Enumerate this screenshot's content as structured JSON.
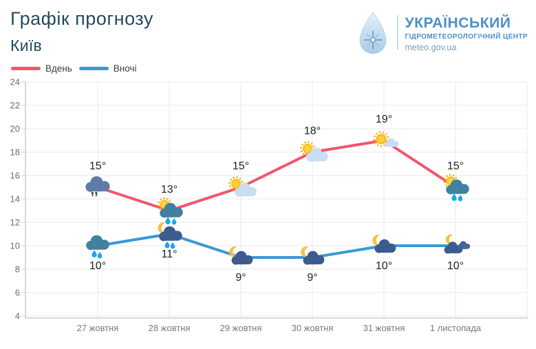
{
  "header": {
    "title": "Графік прогнозу",
    "city": "Київ",
    "title_color": "#234b5e"
  },
  "logo": {
    "icon": "water-drop-snowflake-icon",
    "name_line1": "УКРАЇНСЬКИЙ",
    "name_line2": "ГІДРОМЕТЕОРОЛОГІЧНИЙ ЦЕНТР",
    "url": "meteo.gov.ua",
    "text_color": "#4a90c8",
    "url_color": "#7d9cb8"
  },
  "legend": {
    "items": [
      {
        "label": "Вдень",
        "color": "#f2556e"
      },
      {
        "label": "Вночі",
        "color": "#3a98d9"
      }
    ]
  },
  "chart_data": {
    "type": "line",
    "title": "Графік прогнозу",
    "subtitle": "Київ",
    "categories": [
      "27 жовтня",
      "28 жовтня",
      "29 жовтня",
      "30 жовтня",
      "31 жовтня",
      "1 листопада"
    ],
    "series": [
      {
        "name": "Вдень",
        "color": "#f2556e",
        "values": [
          15,
          13,
          15,
          18,
          19,
          15
        ],
        "point_labels": [
          "15°",
          "13°",
          "15°",
          "18°",
          "19°",
          "15°"
        ],
        "icons": [
          "cloud-drizzle",
          "sun-cloud-rain",
          "sun-cloud",
          "sun-cloud",
          "sun-small-cloud",
          "sun-cloud-rain"
        ],
        "label_side": "above"
      },
      {
        "name": "Вночі",
        "color": "#3a98d9",
        "values": [
          10,
          11,
          9,
          9,
          10,
          10
        ],
        "point_labels": [
          "10°",
          "11°",
          "9°",
          "9°",
          "10°",
          "10°"
        ],
        "icons": [
          "cloud-rain",
          "moon-cloud-rain",
          "moon-cloud",
          "moon-cloud",
          "moon-cloud",
          "moon-clouds"
        ],
        "label_side": "below"
      }
    ],
    "ylim": [
      4,
      24
    ],
    "yticks": [
      4,
      6,
      8,
      10,
      12,
      14,
      16,
      18,
      20,
      22,
      24
    ],
    "grid": true,
    "legend_position": "top-left",
    "icon_colors": {
      "sun": "#fbc21d",
      "sun_inner": "#fdd04a",
      "sun_ray": "#f2b21d",
      "moon": "#f6c243",
      "cloud_light": "#c9def3",
      "cloud_teal": "#41809f",
      "cloud_navy": "#3c5b8e",
      "cloud_navy2": "#46639a",
      "cloud_slate": "#5d7ba6",
      "drop": "#1ca7ea",
      "drizzle": "#2b4a72"
    }
  }
}
